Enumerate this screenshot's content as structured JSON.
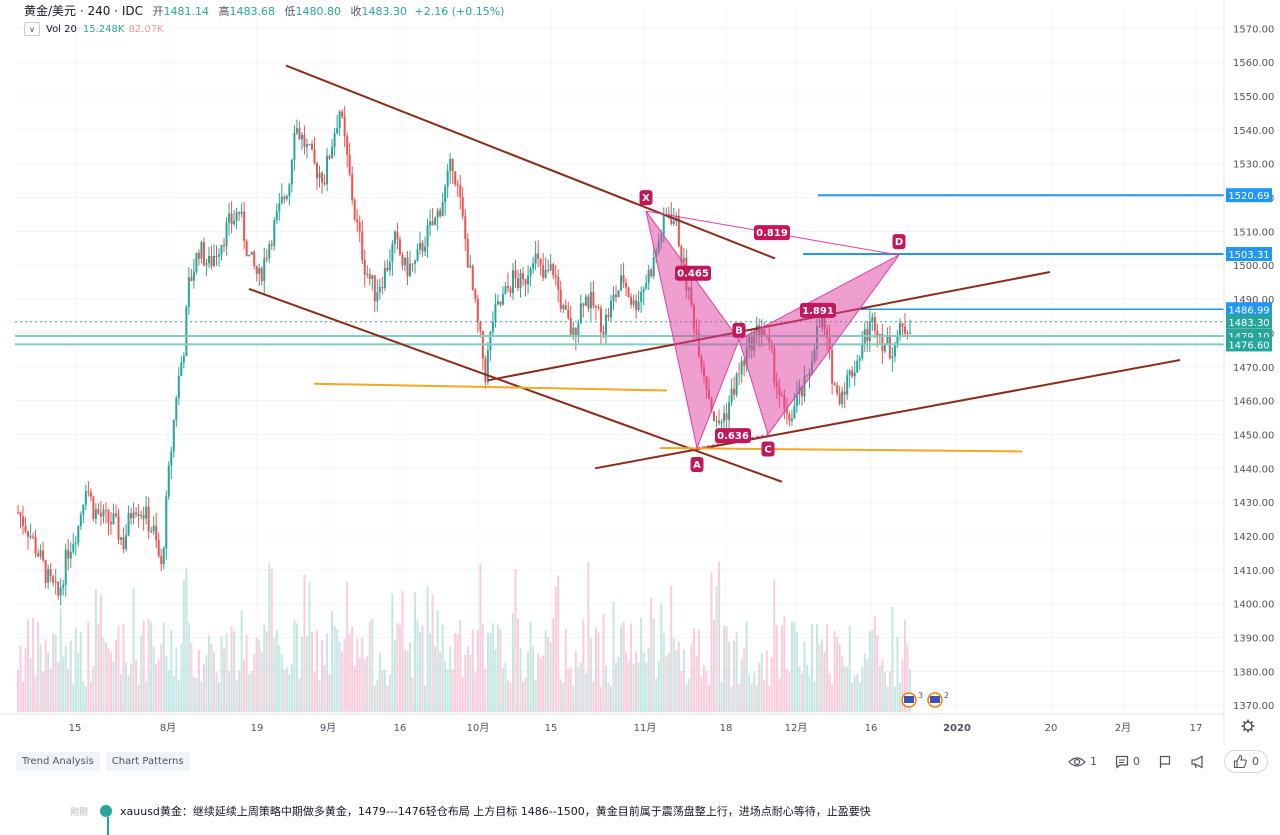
{
  "header": {
    "symbol": "黄金/美元 · 240 · IDC",
    "open_label": "开",
    "open": "1481.14",
    "high_label": "高",
    "high": "1483.68",
    "low_label": "低",
    "low": "1480.80",
    "close_label": "收",
    "close": "1483.30",
    "change": "+2.16 (+0.15%)"
  },
  "volume": {
    "label": "Vol 20",
    "v1": "15.248K",
    "v2": "82.07K"
  },
  "colors": {
    "up": "#26a69a",
    "down": "#ef5350",
    "trend": "#8b2b1a",
    "support": "#f5a623",
    "level": "#2196f3",
    "pattern": "#e040a0",
    "cyan": "#80cbc4"
  },
  "chart_data": {
    "type": "candlestick",
    "symbol": "XAUUSD",
    "interval": "240",
    "ylim": [
      1368,
      1576
    ],
    "y_ticks": [
      1370,
      1380,
      1390,
      1400,
      1410,
      1420,
      1430,
      1440,
      1450,
      1460,
      1470,
      1480,
      1490,
      1500,
      1510,
      1520,
      1530,
      1540,
      1550,
      1560,
      1570
    ],
    "x_ticks": [
      "15",
      "8月",
      "19",
      "9月",
      "16",
      "10月",
      "15",
      "11月",
      "18",
      "12月",
      "16",
      "2020",
      "20",
      "2月",
      "17"
    ],
    "price_path": [
      [
        0,
        1427
      ],
      [
        4,
        1422
      ],
      [
        8,
        1415
      ],
      [
        12,
        1407
      ],
      [
        16,
        1402
      ],
      [
        20,
        1416
      ],
      [
        24,
        1423
      ],
      [
        27,
        1436
      ],
      [
        30,
        1428
      ],
      [
        34,
        1425
      ],
      [
        38,
        1424
      ],
      [
        42,
        1418
      ],
      [
        46,
        1430
      ],
      [
        50,
        1427
      ],
      [
        54,
        1421
      ],
      [
        57,
        1410
      ],
      [
        60,
        1438
      ],
      [
        63,
        1462
      ],
      [
        66,
        1476
      ],
      [
        68,
        1494
      ],
      [
        72,
        1505
      ],
      [
        76,
        1500
      ],
      [
        80,
        1506
      ],
      [
        84,
        1512
      ],
      [
        88,
        1516
      ],
      [
        92,
        1502
      ],
      [
        96,
        1496
      ],
      [
        100,
        1507
      ],
      [
        104,
        1516
      ],
      [
        108,
        1525
      ],
      [
        110,
        1542
      ],
      [
        114,
        1536
      ],
      [
        118,
        1529
      ],
      [
        122,
        1526
      ],
      [
        126,
        1540
      ],
      [
        128,
        1546
      ],
      [
        131,
        1531
      ],
      [
        134,
        1515
      ],
      [
        138,
        1500
      ],
      [
        142,
        1492
      ],
      [
        146,
        1498
      ],
      [
        150,
        1507
      ],
      [
        154,
        1499
      ],
      [
        158,
        1500
      ],
      [
        162,
        1508
      ],
      [
        166,
        1513
      ],
      [
        170,
        1522
      ],
      [
        173,
        1531
      ],
      [
        176,
        1518
      ],
      [
        180,
        1497
      ],
      [
        183,
        1482
      ],
      [
        186,
        1468
      ],
      [
        189,
        1484
      ],
      [
        193,
        1490
      ],
      [
        197,
        1496
      ],
      [
        201,
        1494
      ],
      [
        205,
        1504
      ],
      [
        209,
        1496
      ],
      [
        213,
        1499
      ],
      [
        217,
        1486
      ],
      [
        221,
        1479
      ],
      [
        225,
        1491
      ],
      [
        229,
        1488
      ],
      [
        233,
        1482
      ],
      [
        237,
        1490
      ],
      [
        241,
        1496
      ],
      [
        245,
        1488
      ],
      [
        249,
        1494
      ],
      [
        253,
        1501
      ],
      [
        256,
        1510
      ],
      [
        259,
        1516
      ],
      [
        262,
        1512
      ],
      [
        266,
        1495
      ],
      [
        270,
        1480
      ],
      [
        274,
        1465
      ],
      [
        278,
        1452
      ],
      [
        282,
        1457
      ],
      [
        285,
        1464
      ],
      [
        289,
        1472
      ],
      [
        292,
        1478
      ],
      [
        296,
        1482
      ],
      [
        300,
        1472
      ],
      [
        303,
        1462
      ],
      [
        306,
        1453
      ],
      [
        310,
        1460
      ],
      [
        314,
        1465
      ],
      [
        317,
        1478
      ],
      [
        320,
        1484
      ],
      [
        323,
        1472
      ],
      [
        326,
        1461
      ],
      [
        330,
        1466
      ],
      [
        334,
        1472
      ],
      [
        337,
        1479
      ],
      [
        341,
        1484
      ],
      [
        344,
        1478
      ],
      [
        347,
        1475
      ],
      [
        351,
        1480
      ],
      [
        355,
        1483
      ]
    ],
    "levels": [
      1520.69,
      1503.31,
      1486.99,
      1483.3,
      1479.1,
      1476.6
    ],
    "level_labels": [
      "1520.69",
      "1503.31",
      "1486.99",
      "1483.30",
      "1479.10",
      "1476.60"
    ],
    "harmonic": {
      "points": [
        {
          "label": "X",
          "price": 1516
        },
        {
          "label": "A",
          "price": 1446
        },
        {
          "label": "B",
          "price": 1478
        },
        {
          "label": "C",
          "price": 1450
        },
        {
          "label": "D",
          "price": 1503
        }
      ],
      "ratios": [
        "0.819",
        "0.465",
        "1.891",
        "0.636"
      ]
    }
  },
  "tags": [
    "Trend Analysis",
    "Chart Patterns"
  ],
  "stats": {
    "views": "1",
    "comments": "0",
    "likes": "0"
  },
  "comment": {
    "author_hint": "刚刚",
    "text": "xauusd黄金：继续延续上周策略中期做多黄金，1479---1476轻仓布局 上方目标 1486--1500，黄金目前属于震荡盘整上行，进场点耐心等待，止盈要快"
  },
  "icons": [
    "chevron-down-icon",
    "gear-icon",
    "eye-icon",
    "comment-icon",
    "flag-icon",
    "megaphone-icon",
    "thumb-up-icon"
  ]
}
